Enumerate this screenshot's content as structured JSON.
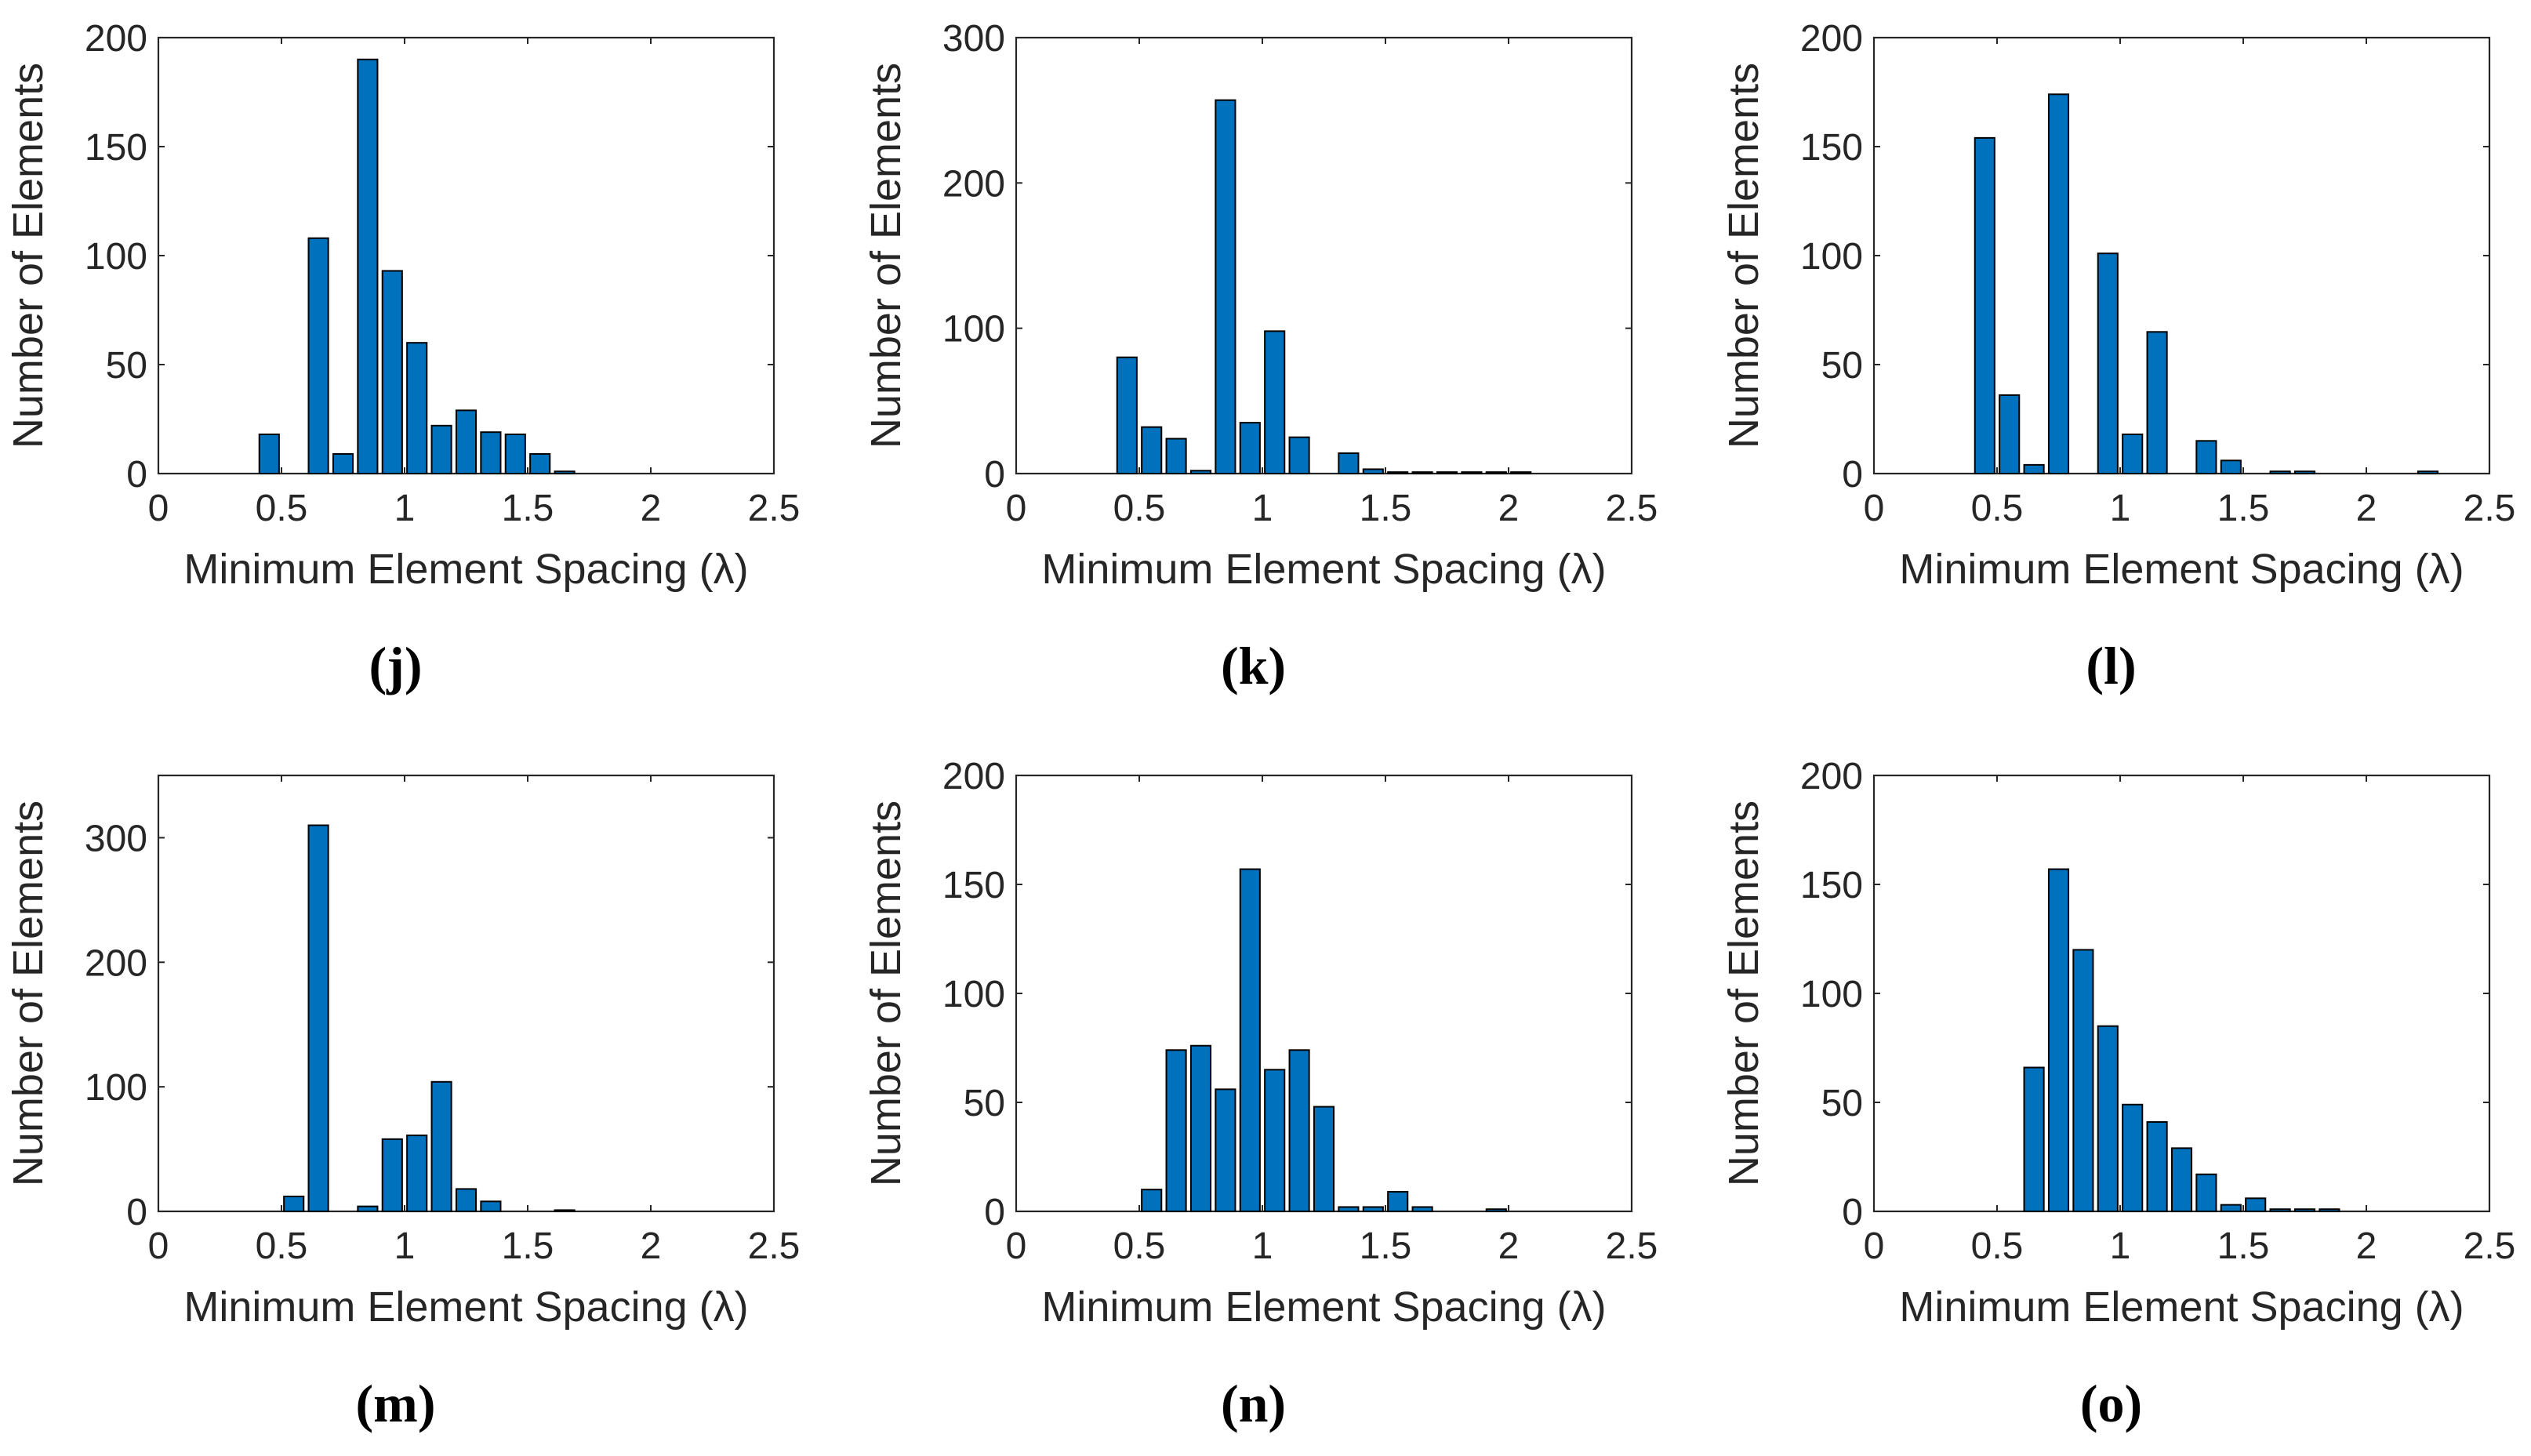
{
  "colors": {
    "bar_fill": "#0072BD",
    "bar_edge": "#000000",
    "axis": "#262626",
    "text": "#262626"
  },
  "chart_data": [
    {
      "type": "bar",
      "caption": "(j)",
      "xlabel": "Minimum Element Spacing (λ)",
      "ylabel": "Number of Elements",
      "xlim": [
        0,
        2.5
      ],
      "ylim": [
        0,
        200
      ],
      "xticks": [
        0,
        0.5,
        1,
        1.5,
        2,
        2.5
      ],
      "xtick_labels": [
        "0",
        "0.5",
        "1",
        "1.5",
        "2",
        "2.5"
      ],
      "yticks": [
        0,
        50,
        100,
        150,
        200
      ],
      "ytick_labels": [
        "0",
        "50",
        "100",
        "150",
        "200"
      ],
      "x": [
        0.45,
        0.55,
        0.65,
        0.75,
        0.85,
        0.95,
        1.05,
        1.15,
        1.25,
        1.35,
        1.45,
        1.55,
        1.65,
        1.75
      ],
      "values": [
        18,
        0,
        108,
        9,
        190,
        93,
        60,
        22,
        29,
        19,
        18,
        9,
        1,
        0
      ]
    },
    {
      "type": "bar",
      "caption": "(k)",
      "xlabel": "Minimum Element Spacing (λ)",
      "ylabel": "Number of Elements",
      "xlim": [
        0,
        2.5
      ],
      "ylim": [
        0,
        300
      ],
      "xticks": [
        0,
        0.5,
        1,
        1.5,
        2,
        2.5
      ],
      "xtick_labels": [
        "0",
        "0.5",
        "1",
        "1.5",
        "2",
        "2.5"
      ],
      "yticks": [
        0,
        100,
        200,
        300
      ],
      "ytick_labels": [
        "0",
        "100",
        "200",
        "300"
      ],
      "x": [
        0.45,
        0.55,
        0.65,
        0.75,
        0.85,
        0.95,
        1.05,
        1.15,
        1.25,
        1.35,
        1.45,
        1.55,
        1.65,
        1.75,
        1.85,
        1.95,
        2.05
      ],
      "values": [
        80,
        32,
        24,
        2,
        257,
        35,
        98,
        25,
        0,
        14,
        3,
        1,
        1,
        1,
        1,
        1,
        1
      ]
    },
    {
      "type": "bar",
      "caption": "(l)",
      "xlabel": "Minimum Element Spacing (λ)",
      "ylabel": "Number of Elements",
      "xlim": [
        0,
        2.5
      ],
      "ylim": [
        0,
        200
      ],
      "xticks": [
        0,
        0.5,
        1,
        1.5,
        2,
        2.5
      ],
      "xtick_labels": [
        "0",
        "0.5",
        "1",
        "1.5",
        "2",
        "2.5"
      ],
      "yticks": [
        0,
        50,
        100,
        150,
        200
      ],
      "ytick_labels": [
        "0",
        "50",
        "100",
        "150",
        "200"
      ],
      "x": [
        0.45,
        0.55,
        0.65,
        0.75,
        0.85,
        0.95,
        1.05,
        1.15,
        1.25,
        1.35,
        1.45,
        1.55,
        1.65,
        1.75,
        2.25
      ],
      "values": [
        154,
        36,
        4,
        174,
        0,
        101,
        18,
        65,
        0,
        15,
        6,
        0,
        1,
        1,
        1
      ]
    },
    {
      "type": "bar",
      "caption": "(m)",
      "xlabel": "Minimum Element Spacing (λ)",
      "ylabel": "Number of Elements",
      "xlim": [
        0,
        2.5
      ],
      "ylim": [
        0,
        350
      ],
      "xticks": [
        0,
        0.5,
        1,
        1.5,
        2,
        2.5
      ],
      "xtick_labels": [
        "0",
        "0.5",
        "1",
        "1.5",
        "2",
        "2.5"
      ],
      "yticks": [
        0,
        100,
        200,
        300
      ],
      "ytick_labels": [
        "0",
        "100",
        "200",
        "300"
      ],
      "x": [
        0.55,
        0.65,
        0.75,
        0.85,
        0.95,
        1.05,
        1.15,
        1.25,
        1.35,
        1.65
      ],
      "values": [
        12,
        310,
        0,
        4,
        58,
        61,
        104,
        18,
        8,
        1
      ]
    },
    {
      "type": "bar",
      "caption": "(n)",
      "xlabel": "Minimum Element Spacing (λ)",
      "ylabel": "Number of Elements",
      "xlim": [
        0,
        2.5
      ],
      "ylim": [
        0,
        200
      ],
      "xticks": [
        0,
        0.5,
        1,
        1.5,
        2,
        2.5
      ],
      "xtick_labels": [
        "0",
        "0.5",
        "1",
        "1.5",
        "2",
        "2.5"
      ],
      "yticks": [
        0,
        50,
        100,
        150,
        200
      ],
      "ytick_labels": [
        "0",
        "50",
        "100",
        "150",
        "200"
      ],
      "x": [
        0.55,
        0.65,
        0.75,
        0.85,
        0.95,
        1.05,
        1.15,
        1.25,
        1.35,
        1.45,
        1.55,
        1.65,
        1.95
      ],
      "values": [
        10,
        74,
        76,
        56,
        157,
        65,
        74,
        48,
        2,
        2,
        9,
        2,
        1
      ]
    },
    {
      "type": "bar",
      "caption": "(o)",
      "xlabel": "Minimum Element Spacing (λ)",
      "ylabel": "Number of Elements",
      "xlim": [
        0,
        2.5
      ],
      "ylim": [
        0,
        200
      ],
      "xticks": [
        0,
        0.5,
        1,
        1.5,
        2,
        2.5
      ],
      "xtick_labels": [
        "0",
        "0.5",
        "1",
        "1.5",
        "2",
        "2.5"
      ],
      "yticks": [
        0,
        50,
        100,
        150,
        200
      ],
      "ytick_labels": [
        "0",
        "50",
        "100",
        "150",
        "200"
      ],
      "x": [
        0.65,
        0.75,
        0.85,
        0.95,
        1.05,
        1.15,
        1.25,
        1.35,
        1.45,
        1.55,
        1.65,
        1.75,
        1.85
      ],
      "values": [
        66,
        157,
        120,
        85,
        49,
        41,
        29,
        17,
        3,
        6,
        1,
        1,
        1
      ]
    }
  ]
}
